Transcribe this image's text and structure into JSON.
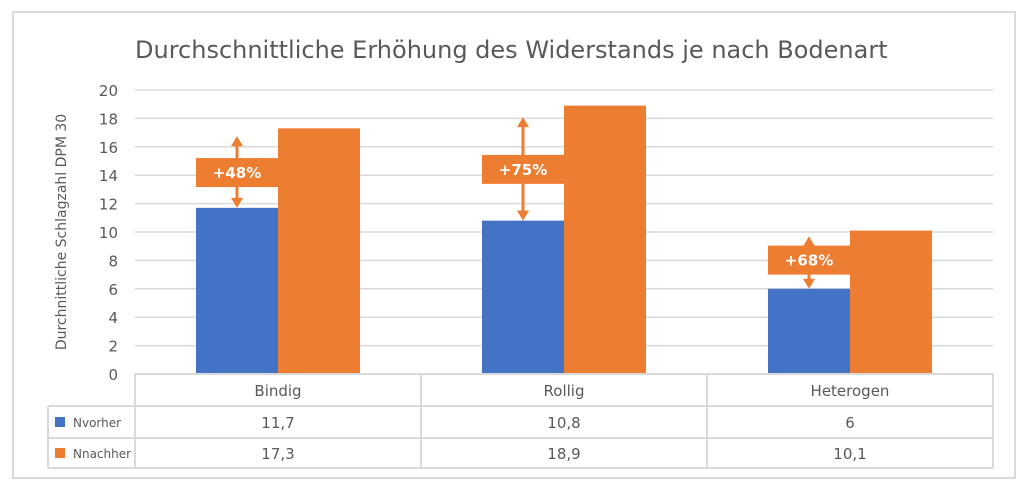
{
  "chart_data": {
    "type": "bar",
    "title": "Durchschnittliche Erhöhung des Widerstands je nach Bodenart",
    "ylabel": "Durchnittliche  Schlagzahl  DPM 30",
    "xlabel": "",
    "ylim": [
      0,
      20
    ],
    "yticks": [
      0,
      2,
      4,
      6,
      8,
      10,
      12,
      14,
      16,
      18,
      20
    ],
    "grid": true,
    "legend": "data-table",
    "categories": [
      "Bindig",
      "Rollig",
      "Heterogen"
    ],
    "series": [
      {
        "name": "Nvorher",
        "values": [
          11.7,
          10.8,
          6
        ],
        "labels": [
          "11,7",
          "10,8",
          "6"
        ],
        "color": "#4472c4"
      },
      {
        "name": "Nnachher",
        "values": [
          17.3,
          18.9,
          10.1
        ],
        "labels": [
          "17,3",
          "18,9",
          "10,1"
        ],
        "color": "#ed7d31"
      }
    ],
    "annotations": [
      "+48%",
      "+75%",
      "+68%"
    ],
    "annotation_color": "#ed7d31"
  }
}
